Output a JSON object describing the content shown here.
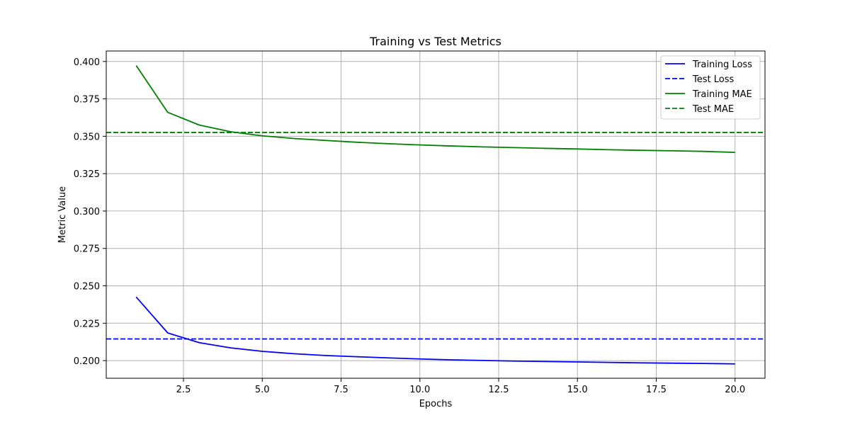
{
  "chart_data": {
    "type": "line",
    "title": "Training vs Test Metrics",
    "xlabel": "Epochs",
    "ylabel": "Metric Value",
    "xlim": [
      0.05,
      20.95
    ],
    "ylim": [
      0.1882,
      0.407
    ],
    "xticks": [
      2.5,
      5.0,
      7.5,
      10.0,
      12.5,
      15.0,
      17.5,
      20.0
    ],
    "xtick_labels": [
      "2.5",
      "5.0",
      "7.5",
      "10.0",
      "12.5",
      "15.0",
      "17.5",
      "20.0"
    ],
    "yticks": [
      0.2,
      0.225,
      0.25,
      0.275,
      0.3,
      0.325,
      0.35,
      0.375,
      0.4
    ],
    "ytick_labels": [
      "0.200",
      "0.225",
      "0.250",
      "0.275",
      "0.300",
      "0.325",
      "0.350",
      "0.375",
      "0.400"
    ],
    "grid": true,
    "legend_position": "top-right",
    "x": [
      1,
      2,
      3,
      4,
      5,
      6,
      7,
      8,
      9,
      10,
      11,
      12,
      13,
      14,
      15,
      16,
      17,
      18,
      19,
      20
    ],
    "series": [
      {
        "name": "Training Loss",
        "color": "#0000ff",
        "style": "solid",
        "values": [
          0.2425,
          0.2185,
          0.212,
          0.2085,
          0.2062,
          0.2046,
          0.2034,
          0.2026,
          0.2018,
          0.2011,
          0.2005,
          0.2001,
          0.1997,
          0.1994,
          0.1991,
          0.1988,
          0.1985,
          0.1983,
          0.1981,
          0.1978
        ]
      },
      {
        "name": "Test Loss",
        "color": "#0000ff",
        "style": "dashed",
        "constant": 0.2145
      },
      {
        "name": "Training MAE",
        "color": "#008000",
        "style": "solid",
        "values": [
          0.3973,
          0.366,
          0.3575,
          0.353,
          0.3503,
          0.3485,
          0.3472,
          0.346,
          0.345,
          0.3442,
          0.3435,
          0.3429,
          0.3424,
          0.3419,
          0.3415,
          0.341,
          0.3406,
          0.3403,
          0.3399,
          0.3392
        ]
      },
      {
        "name": "Test MAE",
        "color": "#008000",
        "style": "dashed",
        "constant": 0.3525
      }
    ]
  }
}
